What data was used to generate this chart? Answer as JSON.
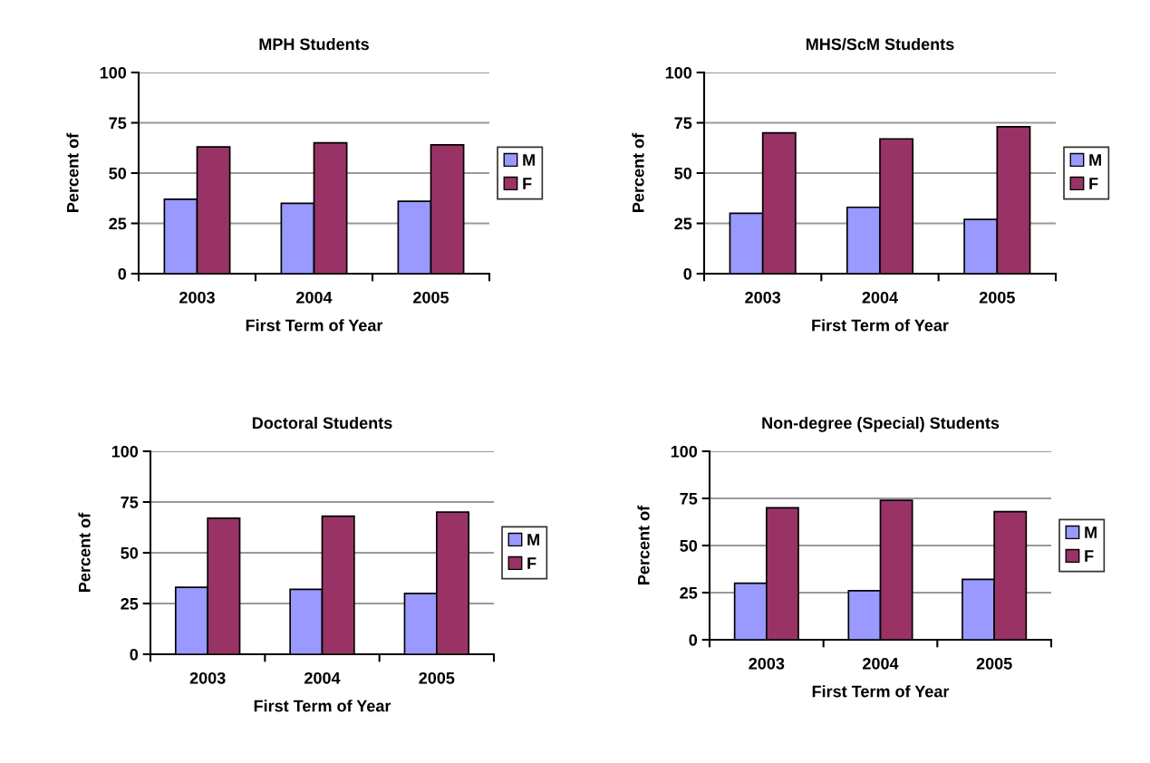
{
  "chart_data": [
    {
      "type": "bar",
      "title": "MPH Students",
      "xlabel": "First Term of Year",
      "ylabel": "Percent of",
      "categories": [
        "2003",
        "2004",
        "2005"
      ],
      "ylim": [
        0,
        100
      ],
      "yticks": [
        0,
        25,
        50,
        75,
        100
      ],
      "grid": "y",
      "legend": "right",
      "series": [
        {
          "name": "M",
          "color": "#9999ff",
          "values": [
            37,
            35,
            36
          ]
        },
        {
          "name": "F",
          "color": "#993366",
          "values": [
            63,
            65,
            64
          ]
        }
      ]
    },
    {
      "type": "bar",
      "title": "MHS/ScM Students",
      "xlabel": "First Term of Year",
      "ylabel": "Percent of",
      "categories": [
        "2003",
        "2004",
        "2005"
      ],
      "ylim": [
        0,
        100
      ],
      "yticks": [
        0,
        25,
        50,
        75,
        100
      ],
      "grid": "y",
      "legend": "right",
      "series": [
        {
          "name": "M",
          "color": "#9999ff",
          "values": [
            30,
            33,
            27
          ]
        },
        {
          "name": "F",
          "color": "#993366",
          "values": [
            70,
            67,
            73
          ]
        }
      ]
    },
    {
      "type": "bar",
      "title": "Doctoral Students",
      "xlabel": "First Term of Year",
      "ylabel": "Percent of",
      "categories": [
        "2003",
        "2004",
        "2005"
      ],
      "ylim": [
        0,
        100
      ],
      "yticks": [
        0,
        25,
        50,
        75,
        100
      ],
      "grid": "y",
      "legend": "right",
      "series": [
        {
          "name": "M",
          "color": "#9999ff",
          "values": [
            33,
            32,
            30
          ]
        },
        {
          "name": "F",
          "color": "#993366",
          "values": [
            67,
            68,
            70
          ]
        }
      ]
    },
    {
      "type": "bar",
      "title": "Non-degree (Special) Students",
      "xlabel": "First Term of Year",
      "ylabel": "Percent of",
      "categories": [
        "2003",
        "2004",
        "2005"
      ],
      "ylim": [
        0,
        100
      ],
      "yticks": [
        0,
        25,
        50,
        75,
        100
      ],
      "grid": "y",
      "legend": "right",
      "series": [
        {
          "name": "M",
          "color": "#9999ff",
          "values": [
            30,
            26,
            32
          ]
        },
        {
          "name": "F",
          "color": "#993366",
          "values": [
            70,
            74,
            68
          ]
        }
      ]
    }
  ]
}
